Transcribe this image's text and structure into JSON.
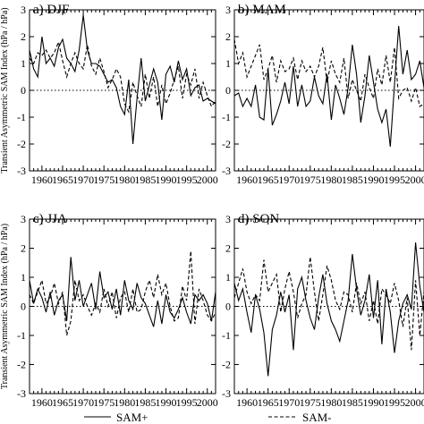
{
  "chart_data": [
    {
      "type": "line",
      "title": "a) DJF",
      "ylabel": "Transient Asymmetric SAM Index (hPa / hPa)",
      "xlim": [
        1957,
        2002
      ],
      "ylim": [
        -3,
        3
      ],
      "xticks": [
        1960,
        1965,
        1970,
        1975,
        1980,
        1985,
        1990,
        1995,
        2000
      ],
      "yticks": [
        -3,
        -2,
        -1,
        0,
        1,
        2,
        3
      ],
      "series": [
        {
          "name": "SAM+",
          "style": "solid",
          "x": [
            1957,
            1958,
            1959,
            1960,
            1961,
            1962,
            1963,
            1964,
            1965,
            1966,
            1967,
            1968,
            1969,
            1970,
            1971,
            1972,
            1973,
            1974,
            1975,
            1976,
            1977,
            1978,
            1979,
            1980,
            1981,
            1982,
            1983,
            1984,
            1985,
            1986,
            1987,
            1988,
            1989,
            1990,
            1991,
            1992,
            1993,
            1994,
            1995,
            1996,
            1997,
            1998,
            1999,
            2000,
            2001,
            2002
          ],
          "values": [
            1.5,
            0.8,
            0.5,
            2.0,
            1.0,
            1.2,
            0.9,
            1.6,
            1.9,
            1.2,
            1.0,
            0.7,
            1.5,
            2.8,
            1.5,
            1.0,
            1.0,
            0.9,
            0.6,
            0.3,
            0.4,
            0.1,
            -0.6,
            -0.9,
            0.4,
            -2.0,
            -0.3,
            1.2,
            -0.4,
            0.2,
            0.8,
            0.3,
            -1.1,
            0.6,
            0.9,
            0.3,
            1.1,
            0.4,
            0.8,
            -0.2,
            0.1,
            0.2,
            -0.4,
            -0.3,
            -0.4,
            -0.5
          ]
        },
        {
          "name": "SAM-",
          "style": "dashed",
          "x": [
            1957,
            1958,
            1959,
            1960,
            1961,
            1962,
            1963,
            1964,
            1965,
            1966,
            1967,
            1968,
            1969,
            1970,
            1971,
            1972,
            1973,
            1974,
            1975,
            1976,
            1977,
            1978,
            1979,
            1980,
            1981,
            1982,
            1983,
            1984,
            1985,
            1986,
            1987,
            1988,
            1989,
            1990,
            1991,
            1992,
            1993,
            1994,
            1995,
            1996,
            1997,
            1998,
            1999,
            2000,
            2001,
            2002
          ],
          "values": [
            1.2,
            1.0,
            1.4,
            1.3,
            1.5,
            1.2,
            1.4,
            1.8,
            1.1,
            0.5,
            1.0,
            1.4,
            1.0,
            0.8,
            1.7,
            0.9,
            0.6,
            1.2,
            0.7,
            0.1,
            0.4,
            0.8,
            0.5,
            -0.5,
            -0.8,
            0.3,
            -0.2,
            -0.6,
            0.6,
            -0.3,
            0.5,
            -0.6,
            0.2,
            -0.5,
            -0.1,
            0.4,
            0.9,
            -0.3,
            0.6,
            0.2,
            0.8,
            -0.3,
            0.3,
            -0.2,
            -0.6,
            -0.4
          ]
        }
      ]
    },
    {
      "type": "line",
      "title": "b) MAM",
      "ylabel": "",
      "xlim": [
        1957,
        2002
      ],
      "ylim": [
        -3,
        3
      ],
      "xticks": [
        1960,
        1965,
        1970,
        1975,
        1980,
        1985,
        1990,
        1995,
        2000
      ],
      "yticks": [
        -3,
        -2,
        -1,
        0,
        1,
        2,
        3
      ],
      "series": [
        {
          "name": "SAM+",
          "style": "solid",
          "x": [
            1957,
            1958,
            1959,
            1960,
            1961,
            1962,
            1963,
            1964,
            1965,
            1966,
            1967,
            1968,
            1969,
            1970,
            1971,
            1972,
            1973,
            1974,
            1975,
            1976,
            1977,
            1978,
            1979,
            1980,
            1981,
            1982,
            1983,
            1984,
            1985,
            1986,
            1987,
            1988,
            1989,
            1990,
            1991,
            1992,
            1993,
            1994,
            1995,
            1996,
            1997,
            1998,
            1999,
            2000,
            2001,
            2002
          ],
          "values": [
            -0.2,
            -0.1,
            -0.6,
            -0.3,
            -0.6,
            0.2,
            -1.0,
            -1.1,
            0.8,
            -1.3,
            -0.9,
            -0.4,
            0.3,
            -0.5,
            0.9,
            -0.6,
            0.2,
            -0.6,
            -0.4,
            0.5,
            -0.2,
            -0.5,
            0.6,
            -1.1,
            0.2,
            -0.3,
            -0.9,
            0.1,
            1.7,
            0.6,
            -1.2,
            -0.2,
            1.3,
            0.3,
            -0.7,
            -1.2,
            -0.7,
            -2.1,
            0.2,
            2.4,
            0.6,
            1.5,
            0.4,
            0.6,
            1.1,
            0.1
          ]
        },
        {
          "name": "SAM-",
          "style": "dashed",
          "x": [
            1957,
            1958,
            1959,
            1960,
            1961,
            1962,
            1963,
            1964,
            1965,
            1966,
            1967,
            1968,
            1969,
            1970,
            1971,
            1972,
            1973,
            1974,
            1975,
            1976,
            1977,
            1978,
            1979,
            1980,
            1981,
            1982,
            1983,
            1984,
            1985,
            1986,
            1987,
            1988,
            1989,
            1990,
            1991,
            1992,
            1993,
            1994,
            1995,
            1996,
            1997,
            1998,
            1999,
            2000,
            2001,
            2002
          ],
          "values": [
            1.9,
            1.0,
            1.4,
            0.5,
            0.9,
            1.3,
            1.7,
            0.4,
            0.8,
            1.3,
            0.3,
            1.1,
            0.7,
            0.8,
            1.2,
            0.4,
            1.1,
            0.7,
            0.9,
            0.5,
            0.9,
            1.6,
            0.3,
            1.1,
            0.6,
            0.3,
            1.2,
            -0.3,
            0.4,
            0.0,
            -0.4,
            0.6,
            0.1,
            -0.3,
            0.8,
            0.2,
            1.3,
            0.3,
            1.6,
            -0.3,
            0.0,
            0.1,
            -0.4,
            0.1,
            -0.6,
            -0.5
          ]
        }
      ]
    },
    {
      "type": "line",
      "title": "c) JJA",
      "ylabel": "Transient Asymmetric SAM Index (hPa / hPa)",
      "xlim": [
        1957,
        2002
      ],
      "ylim": [
        -3,
        3
      ],
      "xticks": [
        1960,
        1965,
        1970,
        1975,
        1980,
        1985,
        1990,
        1995,
        2000
      ],
      "yticks": [
        -3,
        -2,
        -1,
        0,
        1,
        2,
        3
      ],
      "series": [
        {
          "name": "SAM+",
          "style": "solid",
          "x": [
            1957,
            1958,
            1959,
            1960,
            1961,
            1962,
            1963,
            1964,
            1965,
            1966,
            1967,
            1968,
            1969,
            1970,
            1971,
            1972,
            1973,
            1974,
            1975,
            1976,
            1977,
            1978,
            1979,
            1980,
            1981,
            1982,
            1983,
            1984,
            1985,
            1986,
            1987,
            1988,
            1989,
            1990,
            1991,
            1992,
            1993,
            1994,
            1995,
            1996,
            1997,
            1998,
            1999,
            2000,
            2001,
            2002
          ],
          "values": [
            0.9,
            0.1,
            0.6,
            0.3,
            -0.2,
            0.5,
            -0.3,
            0.2,
            0.4,
            -0.5,
            1.7,
            0.2,
            0.9,
            0.0,
            0.4,
            0.8,
            -0.1,
            1.2,
            0.3,
            0.5,
            -0.1,
            0.6,
            -0.3,
            0.9,
            0.2,
            -0.1,
            0.8,
            0.3,
            0.1,
            -0.3,
            -0.7,
            0.2,
            -0.6,
            0.4,
            -0.2,
            -0.4,
            -0.1,
            0.3,
            -0.2,
            -0.6,
            0.4,
            0.2,
            0.4,
            0.1,
            -0.5,
            0.5
          ]
        },
        {
          "name": "SAM-",
          "style": "dashed",
          "x": [
            1957,
            1958,
            1959,
            1960,
            1961,
            1962,
            1963,
            1964,
            1965,
            1966,
            1967,
            1968,
            1969,
            1970,
            1971,
            1972,
            1973,
            1974,
            1975,
            1976,
            1977,
            1978,
            1979,
            1980,
            1981,
            1982,
            1983,
            1984,
            1985,
            1986,
            1987,
            1988,
            1989,
            1990,
            1991,
            1992,
            1993,
            1994,
            1995,
            1996,
            1997,
            1998,
            1999,
            2000,
            2001,
            2002
          ],
          "values": [
            0.4,
            0.1,
            0.5,
            0.9,
            0.1,
            0.3,
            0.8,
            0.1,
            0.5,
            -1.0,
            -0.5,
            0.9,
            0.2,
            0.4,
            0.0,
            -0.3,
            0.1,
            -0.2,
            0.6,
            0.0,
            0.5,
            -0.4,
            0.3,
            0.5,
            -0.2,
            0.6,
            -0.2,
            -0.1,
            0.5,
            0.9,
            0.3,
            1.1,
            0.4,
            0.8,
            0.0,
            -0.5,
            -0.4,
            0.7,
            0.2,
            1.9,
            -0.6,
            0.6,
            0.2,
            -0.3,
            -0.5,
            -0.2
          ]
        }
      ]
    },
    {
      "type": "line",
      "title": "d) SON",
      "ylabel": "",
      "xlim": [
        1957,
        2002
      ],
      "ylim": [
        -3,
        3
      ],
      "xticks": [
        1960,
        1965,
        1970,
        1975,
        1980,
        1985,
        1990,
        1995,
        2000
      ],
      "yticks": [
        -3,
        -2,
        -1,
        0,
        1,
        2,
        3
      ],
      "series": [
        {
          "name": "SAM+",
          "style": "solid",
          "x": [
            1957,
            1958,
            1959,
            1960,
            1961,
            1962,
            1963,
            1964,
            1965,
            1966,
            1967,
            1968,
            1969,
            1970,
            1971,
            1972,
            1973,
            1974,
            1975,
            1976,
            1977,
            1978,
            1979,
            1980,
            1981,
            1982,
            1983,
            1984,
            1985,
            1986,
            1987,
            1988,
            1989,
            1990,
            1991,
            1992,
            1993,
            1994,
            1995,
            1996,
            1997,
            1998,
            1999,
            2000,
            2001,
            2002
          ],
          "values": [
            0.8,
            0.2,
            0.6,
            -0.2,
            -0.9,
            0.4,
            -0.1,
            -0.9,
            -2.4,
            -0.8,
            -0.3,
            0.5,
            -0.2,
            0.4,
            -1.5,
            0.6,
            1.0,
            0.2,
            -0.4,
            -0.8,
            0.3,
            1.1,
            0.1,
            -0.5,
            -0.8,
            -1.2,
            -0.5,
            0.2,
            1.8,
            0.6,
            -0.3,
            0.2,
            1.1,
            -0.4,
            0.9,
            -1.3,
            0.6,
            -0.2,
            -1.6,
            -0.5,
            0.1,
            0.4,
            -0.1,
            2.2,
            0.7,
            -0.2
          ]
        },
        {
          "name": "SAM-",
          "style": "dashed",
          "x": [
            1957,
            1958,
            1959,
            1960,
            1961,
            1962,
            1963,
            1964,
            1965,
            1966,
            1967,
            1968,
            1969,
            1970,
            1971,
            1972,
            1973,
            1974,
            1975,
            1976,
            1977,
            1978,
            1979,
            1980,
            1981,
            1982,
            1983,
            1984,
            1985,
            1986,
            1987,
            1988,
            1989,
            1990,
            1991,
            1992,
            1993,
            1994,
            1995,
            1996,
            1997,
            1998,
            1999,
            2000,
            2001,
            2002
          ],
          "values": [
            0.3,
            0.8,
            1.3,
            0.5,
            0.1,
            0.4,
            0.2,
            1.6,
            0.5,
            0.8,
            1.1,
            -0.2,
            0.6,
            1.2,
            0.5,
            -0.4,
            0.1,
            0.4,
            1.7,
            0.5,
            -0.5,
            0.4,
            1.4,
            0.9,
            0.2,
            -0.1,
            0.5,
            0.4,
            -0.2,
            0.8,
            0.1,
            0.5,
            -0.5,
            0.2,
            -0.6,
            0.6,
            0.4,
            0.1,
            0.8,
            0.2,
            -0.7,
            0.3,
            -1.5,
            0.9,
            -1.0,
            0.5
          ]
        }
      ]
    }
  ],
  "legend": {
    "items": [
      {
        "label": "SAM+",
        "style": "solid"
      },
      {
        "label": "SAM-",
        "style": "dashed"
      }
    ],
    "placement": "bottom"
  }
}
